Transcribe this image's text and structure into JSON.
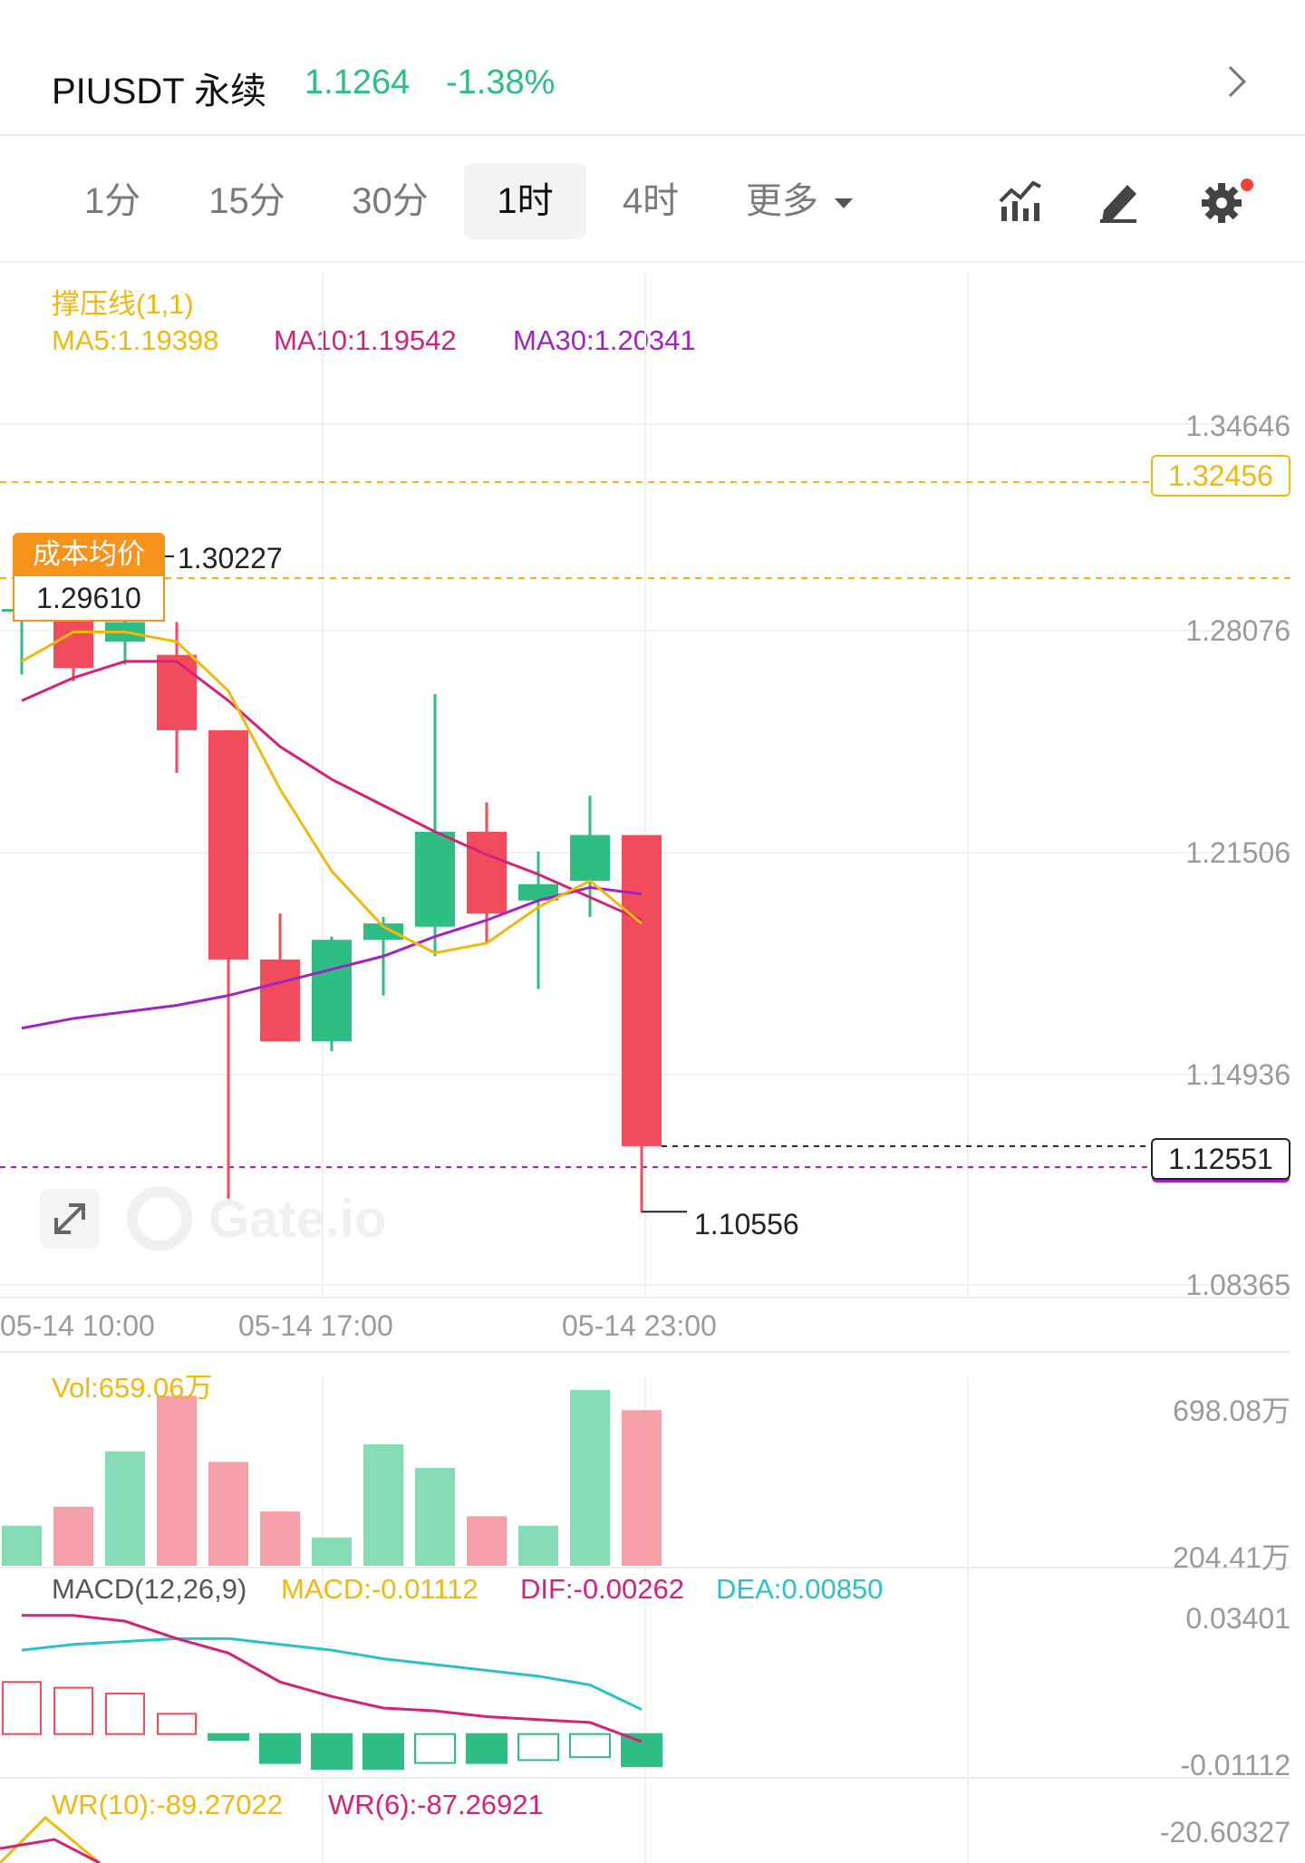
{
  "header": {
    "symbol": "PIUSDT 永续",
    "price": "1.1264",
    "change": "-1.38%"
  },
  "tabs": [
    {
      "label": "1分",
      "active": false
    },
    {
      "label": "15分",
      "active": false
    },
    {
      "label": "30分",
      "active": false
    },
    {
      "label": "1时",
      "active": true
    },
    {
      "label": "4时",
      "active": false
    },
    {
      "label": "更多",
      "active": false
    }
  ],
  "toolbar_icons": [
    "indicators-icon",
    "draw-icon",
    "settings-icon"
  ],
  "indicator_legend": {
    "title": "撑压线(1,1)",
    "ma5": "MA5:1.19398",
    "ma10": "MA10:1.19542",
    "ma30": "MA30:1.20341"
  },
  "price_axis": [
    "1.34646",
    "1.28076",
    "1.21506",
    "1.14936",
    "1.08365"
  ],
  "tags": {
    "resistance": "1.32456",
    "cost_label": "成本均价",
    "cost_value": "1.29610",
    "high_marker": "1.30227",
    "current": "1.12551",
    "low_marker": "1.10556"
  },
  "time_axis": [
    "05-14 10:00",
    "05-14 17:00",
    "05-14 23:00"
  ],
  "volume": {
    "legend": "Vol:659.06万",
    "axis_top": "698.08万",
    "axis_bottom": "204.41万"
  },
  "macd": {
    "title": "MACD(12,26,9)",
    "macd": "MACD:-0.01112",
    "dif": "DIF:-0.00262",
    "dea": "DEA:0.00850",
    "axis_top": "0.03401",
    "axis_bottom": "-0.01112"
  },
  "wr": {
    "wr10": "WR(10):-89.27022",
    "wr6": "WR(6):-87.26921",
    "axis": "-20.60327"
  },
  "colors": {
    "up": "#2ebd85",
    "down": "#f04c5c",
    "ma5": "#f0b90b",
    "ma10": "#d6217a",
    "ma30": "#a223c4",
    "dea": "#27c3c6",
    "cost": "#f7931a"
  },
  "chart_data": {
    "type": "candlestick",
    "ohlc": [
      {
        "open": 1.29,
        "high": 1.302,
        "low": 1.27,
        "close": 1.29
      },
      {
        "open": 1.293,
        "high": 1.302,
        "low": 1.268,
        "close": 1.272
      },
      {
        "open": 1.28,
        "high": 1.296,
        "low": 1.273,
        "close": 1.286
      },
      {
        "open": 1.276,
        "high": 1.286,
        "low": 1.24,
        "close": 1.253
      },
      {
        "open": 1.253,
        "high": 1.253,
        "low": 1.11,
        "close": 1.183
      },
      {
        "open": 1.183,
        "high": 1.197,
        "low": 1.158,
        "close": 1.158
      },
      {
        "open": 1.158,
        "high": 1.19,
        "low": 1.155,
        "close": 1.189
      },
      {
        "open": 1.189,
        "high": 1.196,
        "low": 1.172,
        "close": 1.194
      },
      {
        "open": 1.193,
        "high": 1.264,
        "low": 1.184,
        "close": 1.222
      },
      {
        "open": 1.222,
        "high": 1.231,
        "low": 1.188,
        "close": 1.197
      },
      {
        "open": 1.201,
        "high": 1.216,
        "low": 1.174,
        "close": 1.206
      },
      {
        "open": 1.207,
        "high": 1.233,
        "low": 1.196,
        "close": 1.221
      },
      {
        "open": 1.221,
        "high": 1.221,
        "low": 1.106,
        "close": 1.126
      }
    ],
    "ma5": [
      1.274,
      1.283,
      1.283,
      1.28,
      1.265,
      1.235,
      1.21,
      1.193,
      1.185,
      1.188,
      1.199,
      1.207,
      1.194
    ],
    "ma10": [
      1.262,
      1.269,
      1.274,
      1.274,
      1.262,
      1.248,
      1.238,
      1.23,
      1.222,
      1.215,
      1.209,
      1.202,
      1.195
    ],
    "ma30": [
      1.162,
      1.165,
      1.167,
      1.169,
      1.172,
      1.176,
      1.18,
      1.184,
      1.19,
      1.195,
      1.201,
      1.205,
      1.203
    ],
    "volume_wan": [
      170,
      250,
      485,
      720,
      440,
      230,
      120,
      515,
      415,
      210,
      170,
      745,
      659.06
    ],
    "macd_hist": [
      0.018,
      0.016,
      0.014,
      0.007,
      -0.002,
      -0.01,
      -0.012,
      -0.012,
      -0.01,
      -0.01,
      -0.009,
      -0.008,
      -0.01112
    ],
    "dif": [
      0.041,
      0.041,
      0.039,
      0.033,
      0.028,
      0.018,
      0.013,
      0.009,
      0.008,
      0.006,
      0.005,
      0.004,
      -0.00262
    ],
    "dea": [
      0.029,
      0.031,
      0.032,
      0.033,
      0.033,
      0.031,
      0.029,
      0.026,
      0.024,
      0.022,
      0.02,
      0.017,
      0.0085
    ],
    "ylim": [
      1.08365,
      1.34646
    ]
  }
}
